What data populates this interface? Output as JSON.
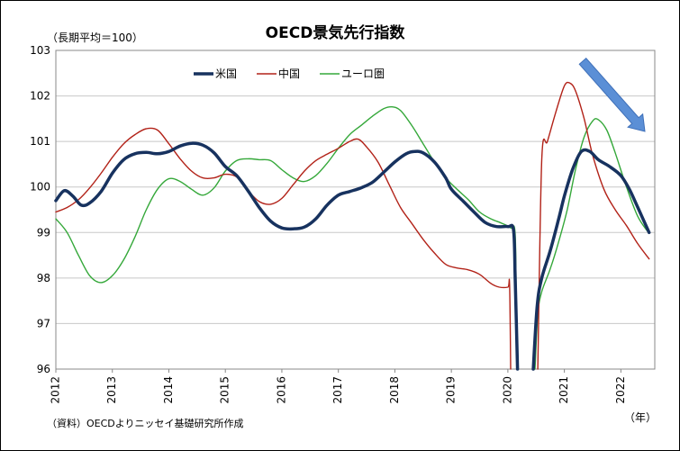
{
  "chart_data": {
    "type": "line",
    "title": "OECD景気先行指数",
    "unit_label": "（長期平均＝100）",
    "x_unit": "（年）",
    "source": "（資料）OECDよりニッセイ基礎研究所作成",
    "x_ticks": [
      "2012",
      "2013",
      "2014",
      "2015",
      "2016",
      "2017",
      "2018",
      "2019",
      "2020",
      "2021",
      "2022"
    ],
    "ylim": [
      96,
      103
    ],
    "y_ticks": [
      96,
      97,
      98,
      99,
      100,
      101,
      102,
      103
    ],
    "grid": "horizontal",
    "legend_position": "top-left",
    "series": [
      {
        "name": "米国",
        "color": "#17325f",
        "style": "thick",
        "points": [
          [
            2012.0,
            99.7
          ],
          [
            2012.15,
            99.92
          ],
          [
            2012.3,
            99.8
          ],
          [
            2012.45,
            99.6
          ],
          [
            2012.6,
            99.65
          ],
          [
            2012.8,
            99.9
          ],
          [
            2013.0,
            100.3
          ],
          [
            2013.2,
            100.6
          ],
          [
            2013.4,
            100.73
          ],
          [
            2013.6,
            100.76
          ],
          [
            2013.8,
            100.73
          ],
          [
            2014.0,
            100.78
          ],
          [
            2014.2,
            100.9
          ],
          [
            2014.4,
            100.96
          ],
          [
            2014.6,
            100.92
          ],
          [
            2014.8,
            100.75
          ],
          [
            2015.0,
            100.45
          ],
          [
            2015.2,
            100.25
          ],
          [
            2015.4,
            99.92
          ],
          [
            2015.6,
            99.55
          ],
          [
            2015.8,
            99.25
          ],
          [
            2016.0,
            99.1
          ],
          [
            2016.2,
            99.08
          ],
          [
            2016.4,
            99.12
          ],
          [
            2016.6,
            99.3
          ],
          [
            2016.8,
            99.6
          ],
          [
            2017.0,
            99.82
          ],
          [
            2017.2,
            99.9
          ],
          [
            2017.4,
            99.98
          ],
          [
            2017.6,
            100.1
          ],
          [
            2017.8,
            100.32
          ],
          [
            2018.0,
            100.55
          ],
          [
            2018.2,
            100.73
          ],
          [
            2018.35,
            100.78
          ],
          [
            2018.5,
            100.75
          ],
          [
            2018.7,
            100.55
          ],
          [
            2018.9,
            100.2
          ],
          [
            2019.0,
            99.95
          ],
          [
            2019.2,
            99.7
          ],
          [
            2019.4,
            99.45
          ],
          [
            2019.6,
            99.22
          ],
          [
            2019.8,
            99.13
          ],
          [
            2020.0,
            99.13
          ],
          [
            2020.1,
            99.05
          ],
          [
            2020.13,
            98.0
          ],
          [
            2020.17,
            96.0
          ]
        ],
        "points_2": [
          [
            2020.45,
            96.0
          ],
          [
            2020.52,
            97.4
          ],
          [
            2020.6,
            98.0
          ],
          [
            2020.75,
            98.6
          ],
          [
            2020.9,
            99.3
          ],
          [
            2021.0,
            99.8
          ],
          [
            2021.15,
            100.4
          ],
          [
            2021.3,
            100.78
          ],
          [
            2021.45,
            100.78
          ],
          [
            2021.6,
            100.6
          ],
          [
            2021.8,
            100.45
          ],
          [
            2022.0,
            100.25
          ],
          [
            2022.15,
            99.95
          ],
          [
            2022.3,
            99.55
          ],
          [
            2022.5,
            99.0
          ]
        ]
      },
      {
        "name": "中国",
        "color": "#b22218",
        "style": "thin",
        "points": [
          [
            2012.0,
            99.45
          ],
          [
            2012.2,
            99.55
          ],
          [
            2012.4,
            99.72
          ],
          [
            2012.6,
            99.98
          ],
          [
            2012.8,
            100.3
          ],
          [
            2013.0,
            100.65
          ],
          [
            2013.2,
            100.95
          ],
          [
            2013.4,
            101.15
          ],
          [
            2013.6,
            101.28
          ],
          [
            2013.8,
            101.25
          ],
          [
            2014.0,
            100.95
          ],
          [
            2014.2,
            100.62
          ],
          [
            2014.4,
            100.35
          ],
          [
            2014.6,
            100.2
          ],
          [
            2014.8,
            100.2
          ],
          [
            2015.0,
            100.28
          ],
          [
            2015.2,
            100.22
          ],
          [
            2015.4,
            99.92
          ],
          [
            2015.6,
            99.68
          ],
          [
            2015.8,
            99.62
          ],
          [
            2016.0,
            99.75
          ],
          [
            2016.2,
            100.05
          ],
          [
            2016.4,
            100.35
          ],
          [
            2016.6,
            100.58
          ],
          [
            2016.8,
            100.72
          ],
          [
            2017.0,
            100.85
          ],
          [
            2017.2,
            101.0
          ],
          [
            2017.35,
            101.05
          ],
          [
            2017.5,
            100.88
          ],
          [
            2017.7,
            100.55
          ],
          [
            2017.9,
            100.05
          ],
          [
            2018.1,
            99.55
          ],
          [
            2018.3,
            99.2
          ],
          [
            2018.5,
            98.85
          ],
          [
            2018.7,
            98.55
          ],
          [
            2018.9,
            98.3
          ],
          [
            2019.1,
            98.22
          ],
          [
            2019.3,
            98.18
          ],
          [
            2019.5,
            98.08
          ],
          [
            2019.7,
            97.88
          ],
          [
            2019.85,
            97.8
          ],
          [
            2020.0,
            97.8
          ],
          [
            2020.03,
            97.85
          ],
          [
            2020.05,
            96.0
          ]
        ],
        "points_2": [
          [
            2020.53,
            96.0
          ],
          [
            2020.6,
            100.6
          ],
          [
            2020.7,
            101.0
          ],
          [
            2020.85,
            101.65
          ],
          [
            2021.0,
            102.22
          ],
          [
            2021.1,
            102.28
          ],
          [
            2021.2,
            102.1
          ],
          [
            2021.35,
            101.5
          ],
          [
            2021.5,
            100.7
          ],
          [
            2021.7,
            99.95
          ],
          [
            2021.9,
            99.5
          ],
          [
            2022.1,
            99.15
          ],
          [
            2022.3,
            98.75
          ],
          [
            2022.5,
            98.42
          ]
        ]
      },
      {
        "name": "ユーロ圏",
        "color": "#35a83a",
        "style": "thin",
        "points": [
          [
            2012.0,
            99.3
          ],
          [
            2012.2,
            99.0
          ],
          [
            2012.4,
            98.5
          ],
          [
            2012.6,
            98.05
          ],
          [
            2012.8,
            97.9
          ],
          [
            2013.0,
            98.05
          ],
          [
            2013.2,
            98.4
          ],
          [
            2013.4,
            98.9
          ],
          [
            2013.6,
            99.5
          ],
          [
            2013.8,
            99.95
          ],
          [
            2014.0,
            100.18
          ],
          [
            2014.2,
            100.12
          ],
          [
            2014.4,
            99.95
          ],
          [
            2014.6,
            99.82
          ],
          [
            2014.8,
            99.98
          ],
          [
            2015.0,
            100.35
          ],
          [
            2015.2,
            100.58
          ],
          [
            2015.4,
            100.62
          ],
          [
            2015.6,
            100.6
          ],
          [
            2015.8,
            100.58
          ],
          [
            2016.0,
            100.38
          ],
          [
            2016.2,
            100.2
          ],
          [
            2016.4,
            100.12
          ],
          [
            2016.6,
            100.25
          ],
          [
            2016.8,
            100.52
          ],
          [
            2017.0,
            100.85
          ],
          [
            2017.2,
            101.15
          ],
          [
            2017.4,
            101.35
          ],
          [
            2017.6,
            101.55
          ],
          [
            2017.8,
            101.72
          ],
          [
            2017.95,
            101.76
          ],
          [
            2018.1,
            101.68
          ],
          [
            2018.3,
            101.35
          ],
          [
            2018.5,
            100.95
          ],
          [
            2018.7,
            100.55
          ],
          [
            2018.9,
            100.2
          ],
          [
            2019.1,
            99.95
          ],
          [
            2019.3,
            99.72
          ],
          [
            2019.5,
            99.45
          ],
          [
            2019.7,
            99.3
          ],
          [
            2019.9,
            99.2
          ],
          [
            2020.05,
            99.1
          ],
          [
            2020.13,
            98.95
          ],
          [
            2020.15,
            97.0
          ],
          [
            2020.18,
            96.0
          ]
        ],
        "points_2": [
          [
            2020.48,
            96.0
          ],
          [
            2020.53,
            97.2
          ],
          [
            2020.6,
            97.7
          ],
          [
            2020.75,
            98.2
          ],
          [
            2020.9,
            98.8
          ],
          [
            2021.05,
            99.5
          ],
          [
            2021.2,
            100.4
          ],
          [
            2021.35,
            101.1
          ],
          [
            2021.5,
            101.45
          ],
          [
            2021.6,
            101.48
          ],
          [
            2021.75,
            101.25
          ],
          [
            2021.9,
            100.75
          ],
          [
            2022.1,
            100.0
          ],
          [
            2022.3,
            99.35
          ],
          [
            2022.5,
            98.98
          ]
        ]
      }
    ],
    "annotation": {
      "type": "arrow",
      "color": "#5b8fd6"
    }
  }
}
